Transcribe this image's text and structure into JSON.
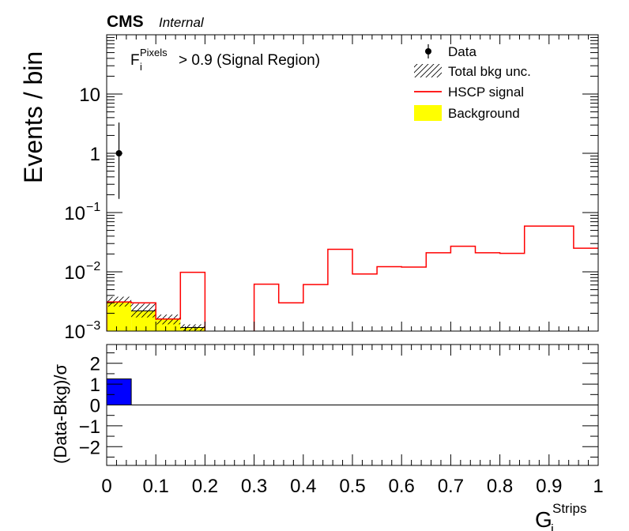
{
  "header": {
    "experiment": "CMS",
    "status": "Internal"
  },
  "annotation": {
    "base": "F",
    "sub": "i",
    "sup": "Pixels",
    "rest": " > 0.9 (Signal Region)"
  },
  "legend": {
    "placement": "top-right",
    "entries": [
      {
        "label": "Data",
        "kind": "marker"
      },
      {
        "label": "Total bkg unc.",
        "kind": "hatch"
      },
      {
        "label": "HSCP signal",
        "kind": "line"
      },
      {
        "label": "Background",
        "kind": "fill"
      }
    ]
  },
  "colors": {
    "signal": "#ff0000",
    "background": "#ffff00",
    "ratio": "#0000ff",
    "data": "#000000"
  },
  "chart_data": [
    {
      "type": "histogram",
      "ylabel": "Events / bin",
      "yscale": "log",
      "xlim": [
        0,
        1
      ],
      "ylim": [
        0.001,
        100
      ],
      "ytick_labels": [
        {
          "value": 0.001,
          "base": "10",
          "exp": "−3"
        },
        {
          "value": 0.01,
          "base": "10",
          "exp": "−2"
        },
        {
          "value": 0.1,
          "base": "10",
          "exp": "−1"
        },
        {
          "value": 1,
          "base": "1",
          "exp": ""
        },
        {
          "value": 10,
          "base": "10",
          "exp": ""
        }
      ],
      "bin_edges": [
        0,
        0.05,
        0.1,
        0.15,
        0.2,
        0.25,
        0.3,
        0.35,
        0.4,
        0.45,
        0.5,
        0.55,
        0.6,
        0.65,
        0.7,
        0.75,
        0.8,
        0.85,
        0.9,
        0.95,
        1.0
      ],
      "series": [
        {
          "name": "Background",
          "values": [
            0.0031,
            0.0022,
            0.0016,
            0.00115,
            null,
            null,
            null,
            null,
            null,
            null,
            null,
            null,
            null,
            null,
            null,
            null,
            null,
            null,
            null,
            null
          ],
          "unc_up": [
            0.0038,
            0.0029,
            0.0019,
            0.0013,
            null,
            null,
            null,
            null,
            null,
            null,
            null,
            null,
            null,
            null,
            null,
            null,
            null,
            null,
            null,
            null
          ],
          "unc_down": [
            0.0026,
            0.0017,
            0.0013,
            0.001,
            null,
            null,
            null,
            null,
            null,
            null,
            null,
            null,
            null,
            null,
            null,
            null,
            null,
            null,
            null,
            null
          ]
        },
        {
          "name": "HSCP signal",
          "values": [
            0.0031,
            0.003,
            0.0016,
            0.0098,
            null,
            null,
            0.0062,
            0.003,
            0.0061,
            0.024,
            0.0092,
            0.0122,
            0.012,
            0.021,
            0.027,
            0.021,
            0.0205,
            0.059,
            0.059,
            0.025
          ]
        },
        {
          "name": "Data",
          "x": [
            0.025
          ],
          "y": [
            1
          ],
          "err_low": [
            0.83
          ],
          "err_high": [
            2.3
          ]
        }
      ]
    },
    {
      "type": "bar",
      "ylabel": "(Data-Bkg)/σ",
      "xlabel_base": "G",
      "xlabel_sub": "i",
      "xlabel_sup": "Strips",
      "xlim": [
        0,
        1
      ],
      "ylim": [
        -2.9,
        2.9
      ],
      "yticks": [
        -2,
        -1,
        0,
        1,
        2
      ],
      "xticks": [
        0,
        0.1,
        0.2,
        0.3,
        0.4,
        0.5,
        0.6,
        0.7,
        0.8,
        0.9,
        1
      ],
      "xtick_labels": [
        "0",
        "0.1",
        "0.2",
        "0.3",
        "0.4",
        "0.5",
        "0.6",
        "0.7",
        "0.8",
        "0.9",
        "1"
      ],
      "ytick_labels": [
        "−2",
        "−1",
        "0",
        "1",
        "2"
      ],
      "bins": [
        {
          "x0": 0.0,
          "x1": 0.05,
          "value": 1.25
        }
      ]
    }
  ]
}
